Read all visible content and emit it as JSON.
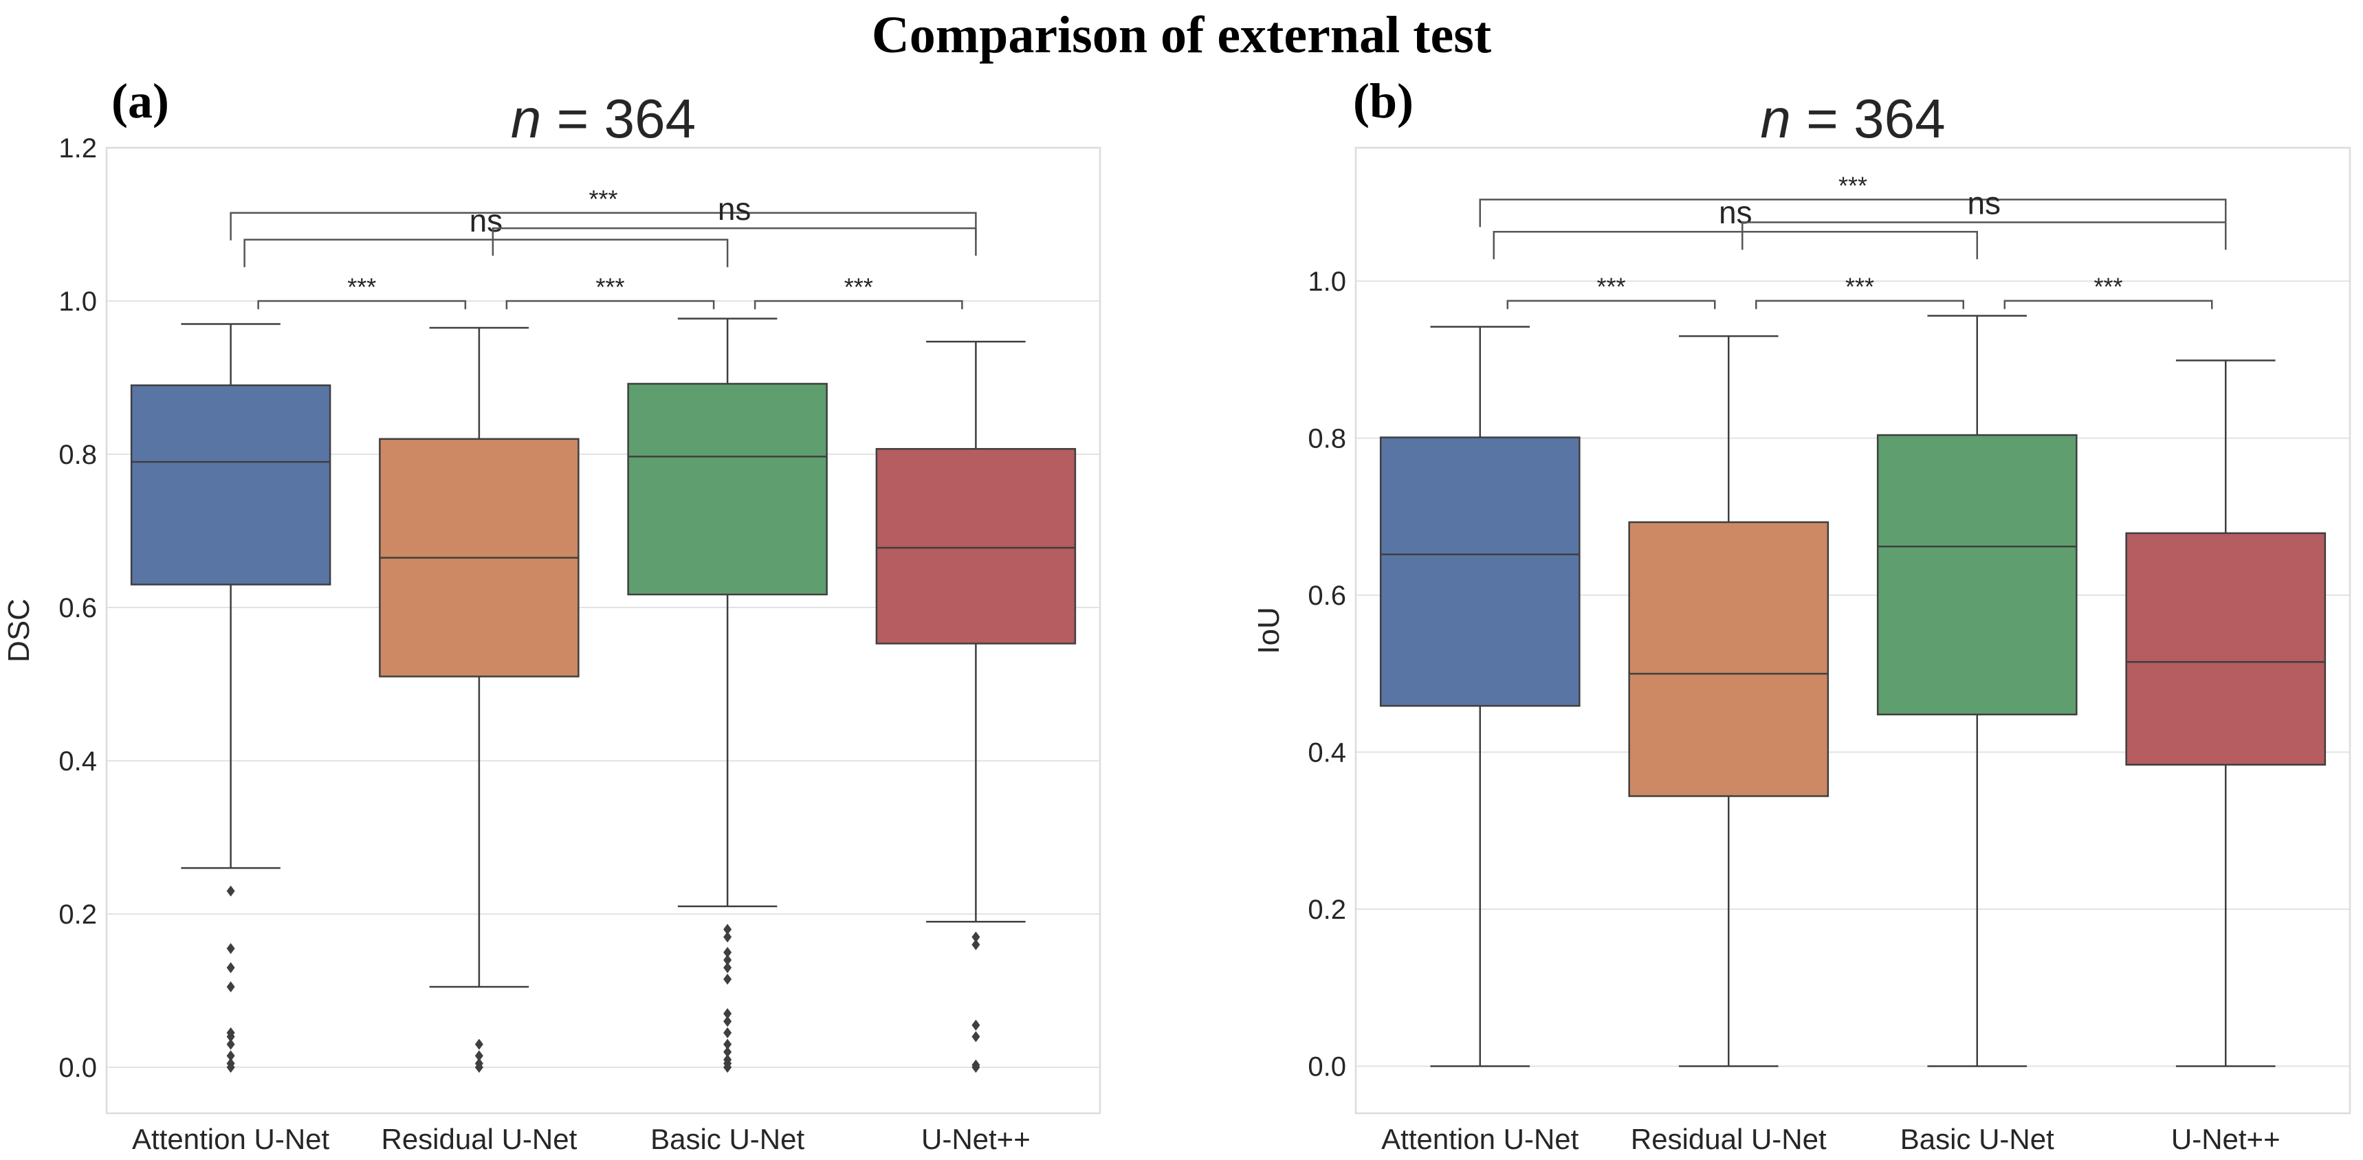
{
  "figure": {
    "title": "Comparison of external test",
    "panel_labels": [
      "(a)",
      "(b)"
    ]
  },
  "chart_data": [
    {
      "type": "box",
      "panel": "(a)",
      "title_n": "n",
      "title_rest": " = 364",
      "ylabel": "DSC",
      "xlabel": "",
      "ylim": [
        -0.06,
        1.2
      ],
      "yticks": [
        0.0,
        0.2,
        0.4,
        0.6,
        0.8,
        1.0,
        1.2
      ],
      "ytick_labels": [
        "0.0",
        "0.2",
        "0.4",
        "0.6",
        "0.8",
        "1.0",
        "1.2"
      ],
      "grid": true,
      "categories": [
        "Attention U-Net",
        "Residual U-Net",
        "Basic U-Net",
        "U-Net++"
      ],
      "colors": [
        "#5875a4",
        "#cc8963",
        "#5f9e6e",
        "#b55d60"
      ],
      "boxes": [
        {
          "whislo": 0.26,
          "q1": 0.63,
          "med": 0.79,
          "q3": 0.89,
          "whishi": 0.97,
          "fliers": [
            0.23,
            0.155,
            0.13,
            0.105,
            0.045,
            0.04,
            0.03,
            0.015,
            0.005,
            0.0
          ]
        },
        {
          "whislo": 0.105,
          "q1": 0.51,
          "med": 0.665,
          "q3": 0.82,
          "whishi": 0.965,
          "fliers": [
            0.03,
            0.015,
            0.005,
            0.0
          ]
        },
        {
          "whislo": 0.21,
          "q1": 0.617,
          "med": 0.797,
          "q3": 0.892,
          "whishi": 0.977,
          "fliers": [
            0.18,
            0.17,
            0.15,
            0.14,
            0.13,
            0.115,
            0.07,
            0.06,
            0.045,
            0.03,
            0.02,
            0.01,
            0.005,
            0.0
          ]
        },
        {
          "whislo": 0.19,
          "q1": 0.553,
          "med": 0.678,
          "q3": 0.807,
          "whishi": 0.947,
          "fliers": [
            0.17,
            0.16,
            0.055,
            0.04,
            0.003,
            0.0
          ]
        }
      ],
      "annotations": [
        {
          "from": 0,
          "to": 3,
          "y": 1.115,
          "text": "***"
        },
        {
          "from": 0,
          "to": 2,
          "y": 1.08,
          "text": "ns"
        },
        {
          "from": 1,
          "to": 3,
          "y": 1.095,
          "text": "ns"
        },
        {
          "from": 0,
          "to": 1,
          "y": 1.0,
          "text": "***"
        },
        {
          "from": 1,
          "to": 2,
          "y": 1.0,
          "text": "***"
        },
        {
          "from": 2,
          "to": 3,
          "y": 1.0,
          "text": "***"
        }
      ]
    },
    {
      "type": "box",
      "panel": "(b)",
      "title_n": "n",
      "title_rest": " = 364",
      "ylabel": "IoU",
      "xlabel": "",
      "ylim": [
        -0.06,
        1.17
      ],
      "yticks": [
        0.0,
        0.2,
        0.4,
        0.6,
        0.8,
        1.0
      ],
      "ytick_labels": [
        "0.0",
        "0.2",
        "0.4",
        "0.6",
        "0.8",
        "1.0"
      ],
      "grid": true,
      "categories": [
        "Attention U-Net",
        "Residual U-Net",
        "Basic U-Net",
        "U-Net++"
      ],
      "colors": [
        "#5875a4",
        "#cc8963",
        "#5f9e6e",
        "#b55d60"
      ],
      "boxes": [
        {
          "whislo": 0.0,
          "q1": 0.459,
          "med": 0.652,
          "q3": 0.801,
          "whishi": 0.942,
          "fliers": []
        },
        {
          "whislo": 0.0,
          "q1": 0.344,
          "med": 0.5,
          "q3": 0.693,
          "whishi": 0.93,
          "fliers": []
        },
        {
          "whislo": 0.0,
          "q1": 0.448,
          "med": 0.662,
          "q3": 0.804,
          "whishi": 0.956,
          "fliers": []
        },
        {
          "whislo": 0.0,
          "q1": 0.384,
          "med": 0.515,
          "q3": 0.679,
          "whishi": 0.899,
          "fliers": []
        }
      ],
      "annotations": [
        {
          "from": 0,
          "to": 3,
          "y": 1.104,
          "text": "***"
        },
        {
          "from": 0,
          "to": 2,
          "y": 1.063,
          "text": "ns"
        },
        {
          "from": 1,
          "to": 3,
          "y": 1.075,
          "text": "ns"
        },
        {
          "from": 0,
          "to": 1,
          "y": 0.975,
          "text": "***"
        },
        {
          "from": 1,
          "to": 2,
          "y": 0.975,
          "text": "***"
        },
        {
          "from": 2,
          "to": 3,
          "y": 0.975,
          "text": "***"
        }
      ]
    }
  ]
}
